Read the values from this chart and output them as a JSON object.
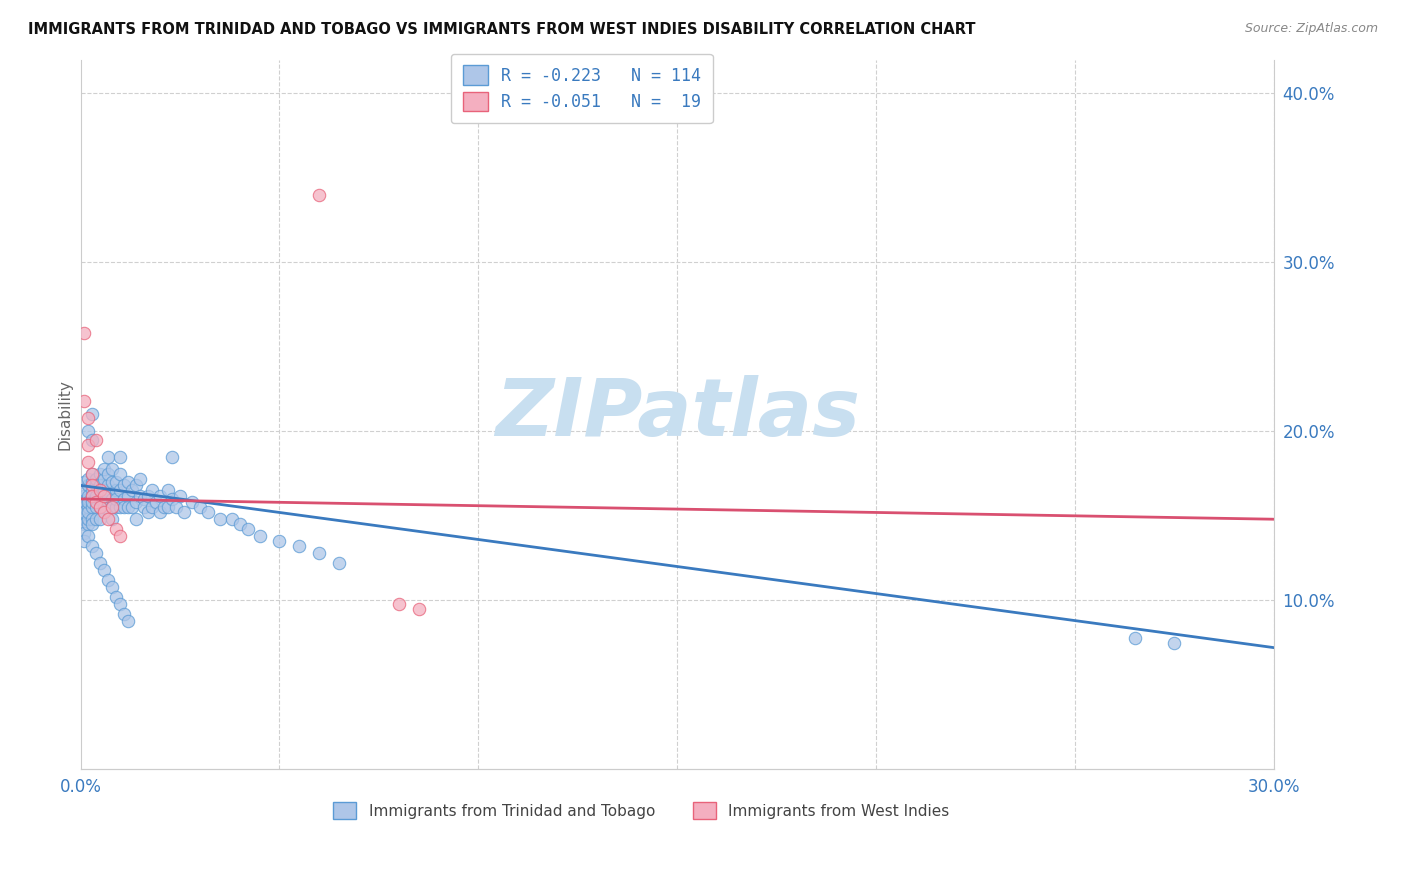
{
  "title": "IMMIGRANTS FROM TRINIDAD AND TOBAGO VS IMMIGRANTS FROM WEST INDIES DISABILITY CORRELATION CHART",
  "source": "Source: ZipAtlas.com",
  "xlabel_blue": "Immigrants from Trinidad and Tobago",
  "xlabel_pink": "Immigrants from West Indies",
  "ylabel": "Disability",
  "xlim": [
    0.0,
    0.3
  ],
  "ylim": [
    0.0,
    0.42
  ],
  "blue_color": "#aec6e8",
  "pink_color": "#f4afc0",
  "blue_edge_color": "#5b9bd5",
  "pink_edge_color": "#e8637a",
  "blue_line_color": "#3a7abf",
  "pink_line_color": "#d95070",
  "watermark_text": "ZIPatlas",
  "watermark_color": "#c8dff0",
  "legend_text_color": "#3a7abf",
  "legend_label_color": "#333333",
  "blue_trend": [
    0.0,
    0.168,
    0.3,
    0.072
  ],
  "pink_trend": [
    0.0,
    0.16,
    0.3,
    0.148
  ],
  "scatter_blue": [
    [
      0.001,
      0.155
    ],
    [
      0.001,
      0.148
    ],
    [
      0.001,
      0.162
    ],
    [
      0.001,
      0.17
    ],
    [
      0.001,
      0.145
    ],
    [
      0.001,
      0.158
    ],
    [
      0.001,
      0.152
    ],
    [
      0.001,
      0.14
    ],
    [
      0.001,
      0.135
    ],
    [
      0.001,
      0.165
    ],
    [
      0.002,
      0.168
    ],
    [
      0.002,
      0.155
    ],
    [
      0.002,
      0.16
    ],
    [
      0.002,
      0.145
    ],
    [
      0.002,
      0.172
    ],
    [
      0.002,
      0.148
    ],
    [
      0.002,
      0.162
    ],
    [
      0.002,
      0.152
    ],
    [
      0.002,
      0.158
    ],
    [
      0.003,
      0.17
    ],
    [
      0.003,
      0.165
    ],
    [
      0.003,
      0.155
    ],
    [
      0.003,
      0.148
    ],
    [
      0.003,
      0.162
    ],
    [
      0.003,
      0.175
    ],
    [
      0.003,
      0.145
    ],
    [
      0.003,
      0.158
    ],
    [
      0.004,
      0.168
    ],
    [
      0.004,
      0.16
    ],
    [
      0.004,
      0.155
    ],
    [
      0.004,
      0.172
    ],
    [
      0.004,
      0.148
    ],
    [
      0.004,
      0.162
    ],
    [
      0.005,
      0.175
    ],
    [
      0.005,
      0.165
    ],
    [
      0.005,
      0.155
    ],
    [
      0.005,
      0.168
    ],
    [
      0.005,
      0.148
    ],
    [
      0.005,
      0.16
    ],
    [
      0.006,
      0.172
    ],
    [
      0.006,
      0.162
    ],
    [
      0.006,
      0.155
    ],
    [
      0.006,
      0.178
    ],
    [
      0.006,
      0.165
    ],
    [
      0.007,
      0.168
    ],
    [
      0.007,
      0.175
    ],
    [
      0.007,
      0.158
    ],
    [
      0.007,
      0.185
    ],
    [
      0.007,
      0.162
    ],
    [
      0.008,
      0.17
    ],
    [
      0.008,
      0.16
    ],
    [
      0.008,
      0.155
    ],
    [
      0.008,
      0.148
    ],
    [
      0.008,
      0.178
    ],
    [
      0.009,
      0.165
    ],
    [
      0.009,
      0.155
    ],
    [
      0.009,
      0.17
    ],
    [
      0.009,
      0.16
    ],
    [
      0.01,
      0.165
    ],
    [
      0.01,
      0.155
    ],
    [
      0.01,
      0.175
    ],
    [
      0.01,
      0.185
    ],
    [
      0.011,
      0.168
    ],
    [
      0.011,
      0.16
    ],
    [
      0.011,
      0.155
    ],
    [
      0.012,
      0.17
    ],
    [
      0.012,
      0.162
    ],
    [
      0.012,
      0.155
    ],
    [
      0.013,
      0.165
    ],
    [
      0.013,
      0.155
    ],
    [
      0.014,
      0.168
    ],
    [
      0.014,
      0.158
    ],
    [
      0.014,
      0.148
    ],
    [
      0.015,
      0.162
    ],
    [
      0.015,
      0.172
    ],
    [
      0.016,
      0.16
    ],
    [
      0.016,
      0.155
    ],
    [
      0.017,
      0.162
    ],
    [
      0.017,
      0.152
    ],
    [
      0.018,
      0.165
    ],
    [
      0.018,
      0.155
    ],
    [
      0.019,
      0.158
    ],
    [
      0.02,
      0.162
    ],
    [
      0.02,
      0.152
    ],
    [
      0.021,
      0.155
    ],
    [
      0.022,
      0.165
    ],
    [
      0.022,
      0.155
    ],
    [
      0.023,
      0.185
    ],
    [
      0.023,
      0.16
    ],
    [
      0.024,
      0.155
    ],
    [
      0.025,
      0.162
    ],
    [
      0.026,
      0.152
    ],
    [
      0.028,
      0.158
    ],
    [
      0.03,
      0.155
    ],
    [
      0.032,
      0.152
    ],
    [
      0.035,
      0.148
    ],
    [
      0.038,
      0.148
    ],
    [
      0.04,
      0.145
    ],
    [
      0.042,
      0.142
    ],
    [
      0.045,
      0.138
    ],
    [
      0.05,
      0.135
    ],
    [
      0.055,
      0.132
    ],
    [
      0.06,
      0.128
    ],
    [
      0.065,
      0.122
    ],
    [
      0.002,
      0.138
    ],
    [
      0.003,
      0.132
    ],
    [
      0.004,
      0.128
    ],
    [
      0.005,
      0.122
    ],
    [
      0.006,
      0.118
    ],
    [
      0.007,
      0.112
    ],
    [
      0.008,
      0.108
    ],
    [
      0.009,
      0.102
    ],
    [
      0.01,
      0.098
    ],
    [
      0.011,
      0.092
    ],
    [
      0.012,
      0.088
    ],
    [
      0.265,
      0.078
    ],
    [
      0.275,
      0.075
    ],
    [
      0.002,
      0.2
    ],
    [
      0.003,
      0.21
    ],
    [
      0.003,
      0.195
    ]
  ],
  "scatter_pink": [
    [
      0.001,
      0.258
    ],
    [
      0.001,
      0.218
    ],
    [
      0.002,
      0.208
    ],
    [
      0.002,
      0.192
    ],
    [
      0.002,
      0.182
    ],
    [
      0.003,
      0.175
    ],
    [
      0.003,
      0.168
    ],
    [
      0.003,
      0.162
    ],
    [
      0.004,
      0.158
    ],
    [
      0.004,
      0.195
    ],
    [
      0.005,
      0.165
    ],
    [
      0.005,
      0.155
    ],
    [
      0.006,
      0.162
    ],
    [
      0.006,
      0.152
    ],
    [
      0.007,
      0.148
    ],
    [
      0.008,
      0.155
    ],
    [
      0.009,
      0.142
    ],
    [
      0.01,
      0.138
    ],
    [
      0.06,
      0.34
    ],
    [
      0.08,
      0.098
    ],
    [
      0.085,
      0.095
    ]
  ]
}
